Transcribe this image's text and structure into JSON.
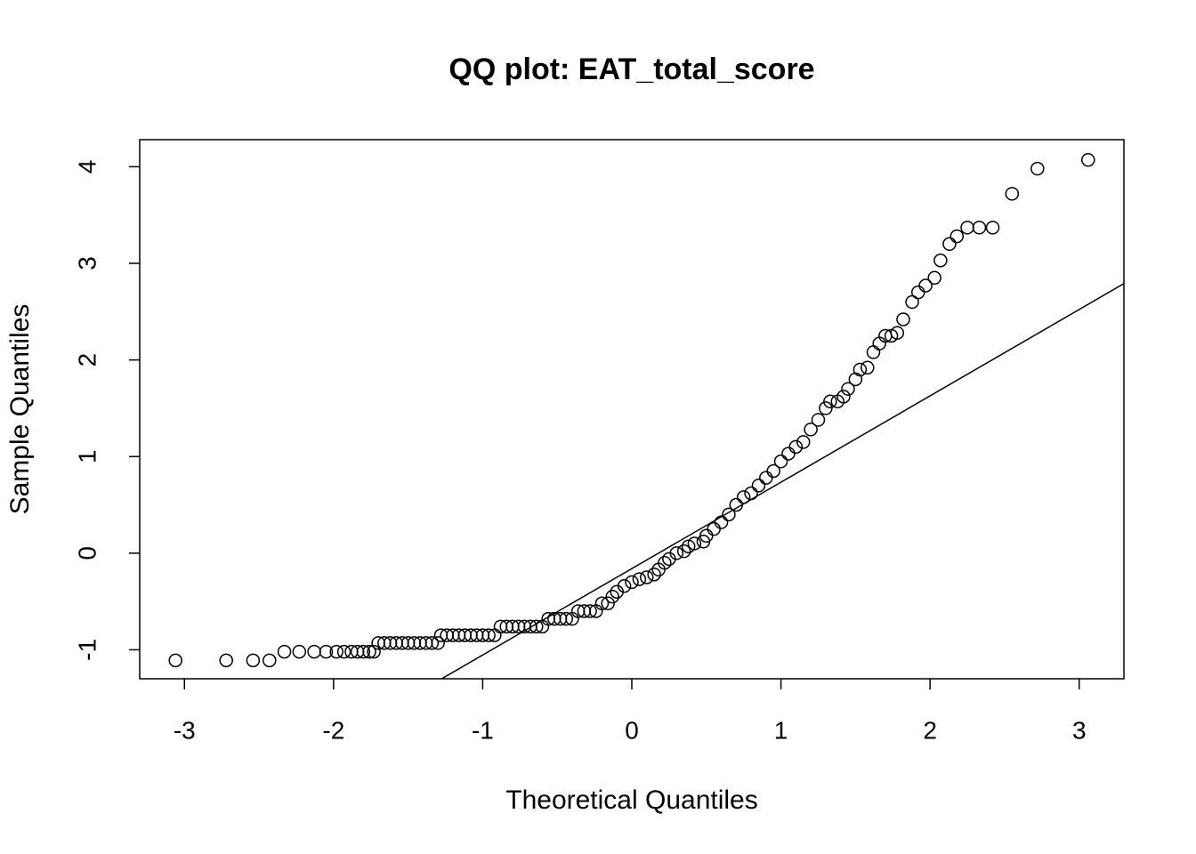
{
  "chart_data": {
    "type": "scatter",
    "title": "QQ plot: EAT_total_score",
    "xlabel": "Theoretical Quantiles",
    "ylabel": "Sample Quantiles",
    "xlim": [
      -3.3,
      3.3
    ],
    "ylim": [
      -1.3,
      4.28
    ],
    "xticks": [
      -3,
      -2,
      -1,
      0,
      1,
      2,
      3
    ],
    "yticks": [
      -1,
      0,
      1,
      2,
      3,
      4
    ],
    "color": "#000000",
    "reference_line": {
      "intercept": -0.16,
      "slope": 0.894
    },
    "x": [
      -3.06,
      -2.72,
      -2.54,
      -2.43,
      -2.33,
      -2.23,
      -2.13,
      -2.05,
      -1.98,
      -1.93,
      -1.88,
      -1.84,
      -1.8,
      -1.76,
      -1.73,
      -1.7,
      -1.66,
      -1.62,
      -1.58,
      -1.54,
      -1.5,
      -1.46,
      -1.42,
      -1.38,
      -1.34,
      -1.3,
      -1.28,
      -1.24,
      -1.2,
      -1.16,
      -1.12,
      -1.08,
      -1.04,
      -1.0,
      -0.96,
      -0.92,
      -0.88,
      -0.84,
      -0.8,
      -0.76,
      -0.72,
      -0.68,
      -0.64,
      -0.6,
      -0.56,
      -0.52,
      -0.48,
      -0.44,
      -0.4,
      -0.36,
      -0.32,
      -0.28,
      -0.24,
      -0.2,
      -0.16,
      -0.13,
      -0.1,
      -0.05,
      0.0,
      0.05,
      0.1,
      0.15,
      0.18,
      0.22,
      0.25,
      0.3,
      0.35,
      0.38,
      0.42,
      0.48,
      0.5,
      0.55,
      0.6,
      0.65,
      0.7,
      0.75,
      0.8,
      0.85,
      0.9,
      0.95,
      1.0,
      1.05,
      1.1,
      1.15,
      1.2,
      1.25,
      1.3,
      1.33,
      1.38,
      1.42,
      1.45,
      1.5,
      1.53,
      1.58,
      1.62,
      1.66,
      1.7,
      1.74,
      1.78,
      1.82,
      1.88,
      1.92,
      1.97,
      2.03,
      2.07,
      2.13,
      2.18,
      2.25,
      2.33,
      2.42,
      2.55,
      2.72,
      3.06
    ],
    "y": [
      -1.11,
      -1.11,
      -1.11,
      -1.11,
      -1.02,
      -1.02,
      -1.02,
      -1.02,
      -1.02,
      -1.02,
      -1.02,
      -1.02,
      -1.02,
      -1.02,
      -1.02,
      -0.93,
      -0.93,
      -0.93,
      -0.93,
      -0.93,
      -0.93,
      -0.93,
      -0.93,
      -0.93,
      -0.93,
      -0.93,
      -0.85,
      -0.85,
      -0.85,
      -0.85,
      -0.85,
      -0.85,
      -0.85,
      -0.85,
      -0.85,
      -0.85,
      -0.76,
      -0.76,
      -0.76,
      -0.76,
      -0.76,
      -0.76,
      -0.76,
      -0.76,
      -0.68,
      -0.68,
      -0.68,
      -0.68,
      -0.68,
      -0.6,
      -0.6,
      -0.6,
      -0.6,
      -0.52,
      -0.52,
      -0.45,
      -0.4,
      -0.34,
      -0.3,
      -0.27,
      -0.25,
      -0.22,
      -0.17,
      -0.1,
      -0.06,
      0.0,
      0.02,
      0.07,
      0.1,
      0.12,
      0.18,
      0.25,
      0.32,
      0.4,
      0.5,
      0.58,
      0.62,
      0.7,
      0.78,
      0.85,
      0.95,
      1.03,
      1.1,
      1.15,
      1.28,
      1.38,
      1.5,
      1.57,
      1.57,
      1.62,
      1.7,
      1.8,
      1.9,
      1.92,
      2.08,
      2.17,
      2.25,
      2.25,
      2.28,
      2.42,
      2.6,
      2.7,
      2.77,
      2.85,
      3.03,
      3.2,
      3.28,
      3.37,
      3.37,
      3.37,
      3.72,
      3.98,
      4.07
    ]
  }
}
